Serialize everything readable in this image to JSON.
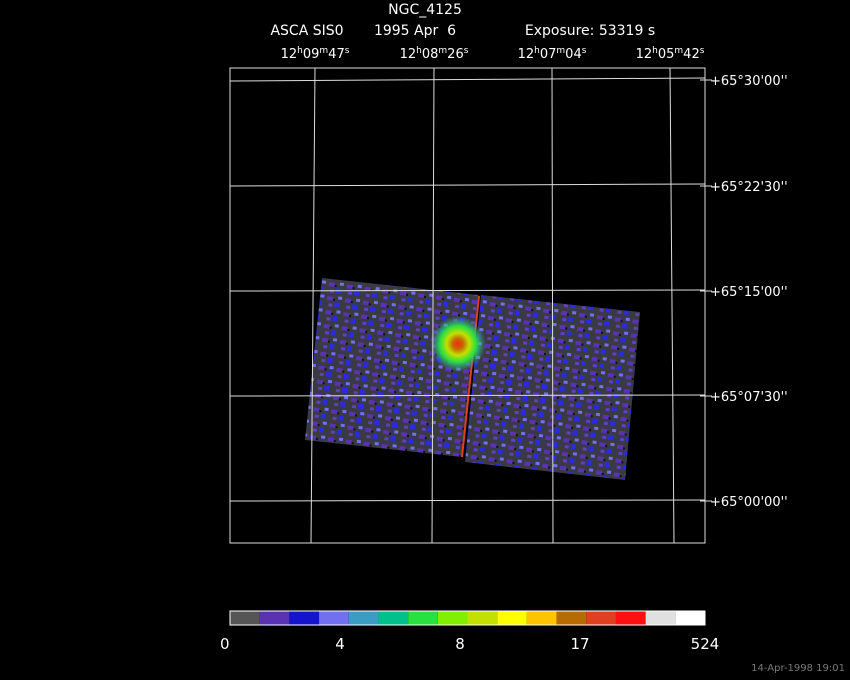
{
  "header": {
    "title": "NGC_4125",
    "instrument": "ASCA SIS0",
    "date": "1995 Apr  6",
    "exposure": "Exposure: 53319 s"
  },
  "ra_labels": [
    [
      "12",
      "h",
      "09",
      "m",
      "47",
      "s"
    ],
    [
      "12",
      "h",
      "08",
      "m",
      "26",
      "s"
    ],
    [
      "12",
      "h",
      "07",
      "m",
      "04",
      "s"
    ],
    [
      "12",
      "h",
      "05",
      "m",
      "42",
      "s"
    ]
  ],
  "dec_labels": [
    "+65°30'00''",
    "+65°22'30''",
    "+65°15'00''",
    "+65°07'30''",
    "+65°00'00''"
  ],
  "colorbar": {
    "colors": [
      "#555555",
      "#5a32b4",
      "#1414cc",
      "#7070f0",
      "#3c9cc4",
      "#00c08c",
      "#28e040",
      "#80f000",
      "#c4e000",
      "#ffff00",
      "#ffc400",
      "#b86c00",
      "#e04020",
      "#ff1010",
      "#e0e0e0",
      "#ffffff"
    ],
    "labels": [
      "0",
      "4",
      "8",
      "17",
      "524"
    ]
  },
  "footer": "14-Apr-1998 19:01"
}
